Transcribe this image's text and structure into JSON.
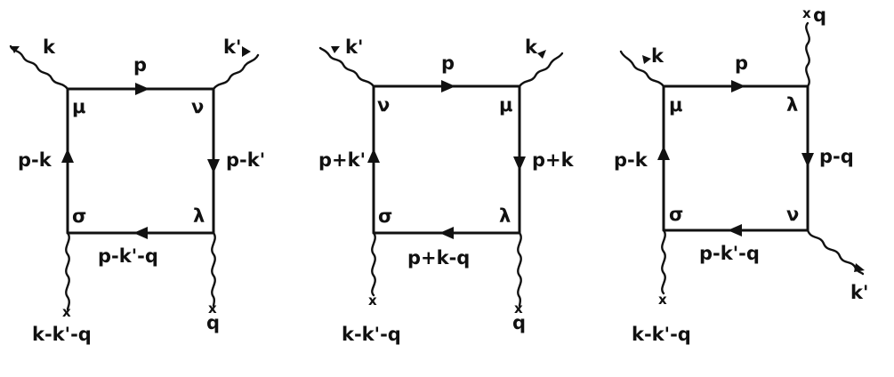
{
  "diagrams": [
    {
      "top_momentum": "p",
      "left_momentum": "p-k",
      "right_momentum": "p-k'",
      "bottom_momentum": "p-k'-q",
      "vertex_top_left": "μ",
      "vertex_top_right": "ν",
      "vertex_bottom_left": "σ",
      "vertex_bottom_right": "λ",
      "photon_top_left": "k",
      "photon_top_right": "k'",
      "photon_bottom_left": "k-k'-q",
      "photon_bottom_right": "q",
      "cross_bottom_left": "x",
      "cross_bottom_right": "x"
    },
    {
      "top_momentum": "p",
      "left_momentum": "p+k'",
      "right_momentum": "p+k",
      "bottom_momentum": "p+k-q",
      "vertex_top_left": "ν",
      "vertex_top_right": "μ",
      "vertex_bottom_left": "σ",
      "vertex_bottom_right": "λ",
      "photon_top_left": "k'",
      "photon_top_right": "k",
      "photon_bottom_left": "k-k'-q",
      "photon_bottom_right": "q",
      "cross_bottom_left": "x",
      "cross_bottom_right": "x"
    },
    {
      "top_momentum": "p",
      "left_momentum": "p-k",
      "right_momentum": "p-q",
      "bottom_momentum": "p-k'-q",
      "vertex_top_left": "μ",
      "vertex_top_right": "λ",
      "vertex_bottom_left": "σ",
      "vertex_bottom_right": "ν",
      "photon_top_left": "k",
      "photon_top_right": "q",
      "photon_bottom_left": "k-k'-q",
      "photon_bottom_right": "k'",
      "cross_top_right": "x",
      "cross_bottom_left": "x"
    }
  ]
}
